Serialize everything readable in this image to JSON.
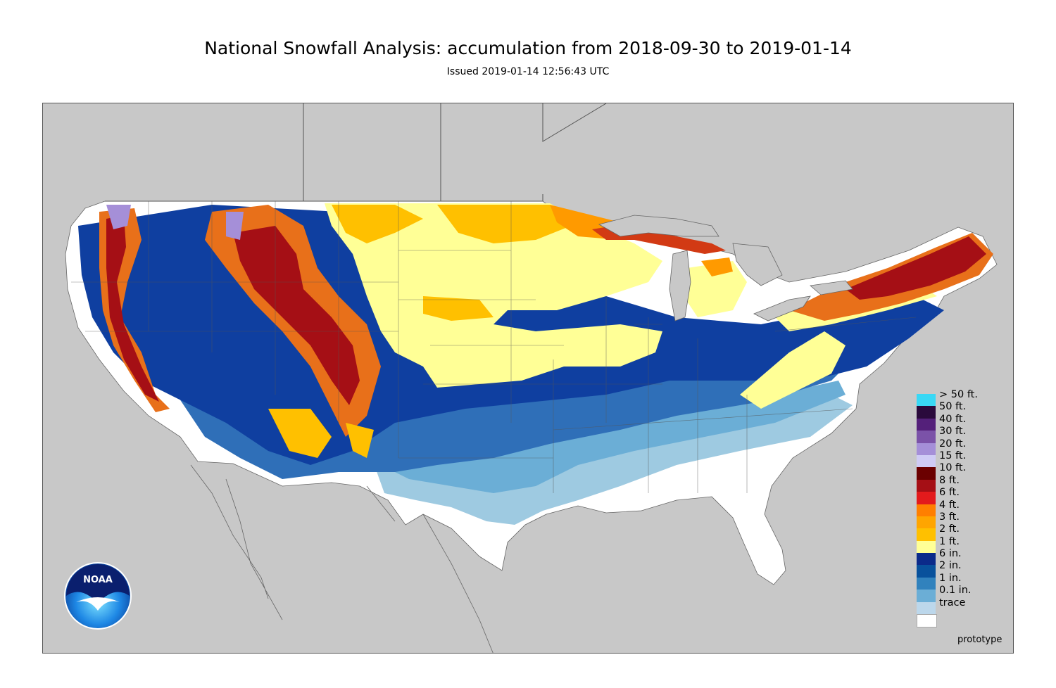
{
  "title": "National Snowfall Analysis: accumulation from 2018-09-30 to 2019-01-14",
  "subtitle": "Issued 2019-01-14 12:56:43 UTC",
  "footer_note": "prototype",
  "logo_text": "NOAA",
  "colors": {
    "ocean_background": "#c8c8c8",
    "trace": "#ffffff",
    "tenth_in": "#bcd7eb",
    "one_in": "#6baed6",
    "two_in": "#3182bd",
    "six_in": "#08519c",
    "one_ft": "#0b2a8a",
    "two_ft": "#ffff96",
    "three_ft": "#ffbf00",
    "four_ft": "#ff8c00",
    "six_ft": "#e31a1c",
    "eight_ft": "#a50f15"
  },
  "legend": [
    {
      "label": "> 50 ft.",
      "color": "#39d8f5"
    },
    {
      "label": "50 ft.",
      "color": "#2a0a3c"
    },
    {
      "label": "40 ft.",
      "color": "#54207a"
    },
    {
      "label": "30 ft.",
      "color": "#7b52a8"
    },
    {
      "label": "20 ft.",
      "color": "#a58fd8"
    },
    {
      "label": "15 ft.",
      "color": "#cfcbf5"
    },
    {
      "label": "10 ft.",
      "color": "#6b0000"
    },
    {
      "label": "8 ft.",
      "color": "#a50f15"
    },
    {
      "label": "6 ft.",
      "color": "#e31a1c"
    },
    {
      "label": "4 ft.",
      "color": "#ff7f00"
    },
    {
      "label": "3 ft.",
      "color": "#ffa500"
    },
    {
      "label": "2 ft.",
      "color": "#ffc000"
    },
    {
      "label": "1 ft.",
      "color": "#ffff96"
    },
    {
      "label": "6 in.",
      "color": "#0b2a8a"
    },
    {
      "label": "2 in.",
      "color": "#08519c"
    },
    {
      "label": "1 in.",
      "color": "#3182bd"
    },
    {
      "label": "0.1 in.",
      "color": "#6baed6"
    },
    {
      "label": "trace",
      "color": "#bcd7eb"
    },
    {
      "label": "",
      "color": "#ffffff"
    }
  ]
}
